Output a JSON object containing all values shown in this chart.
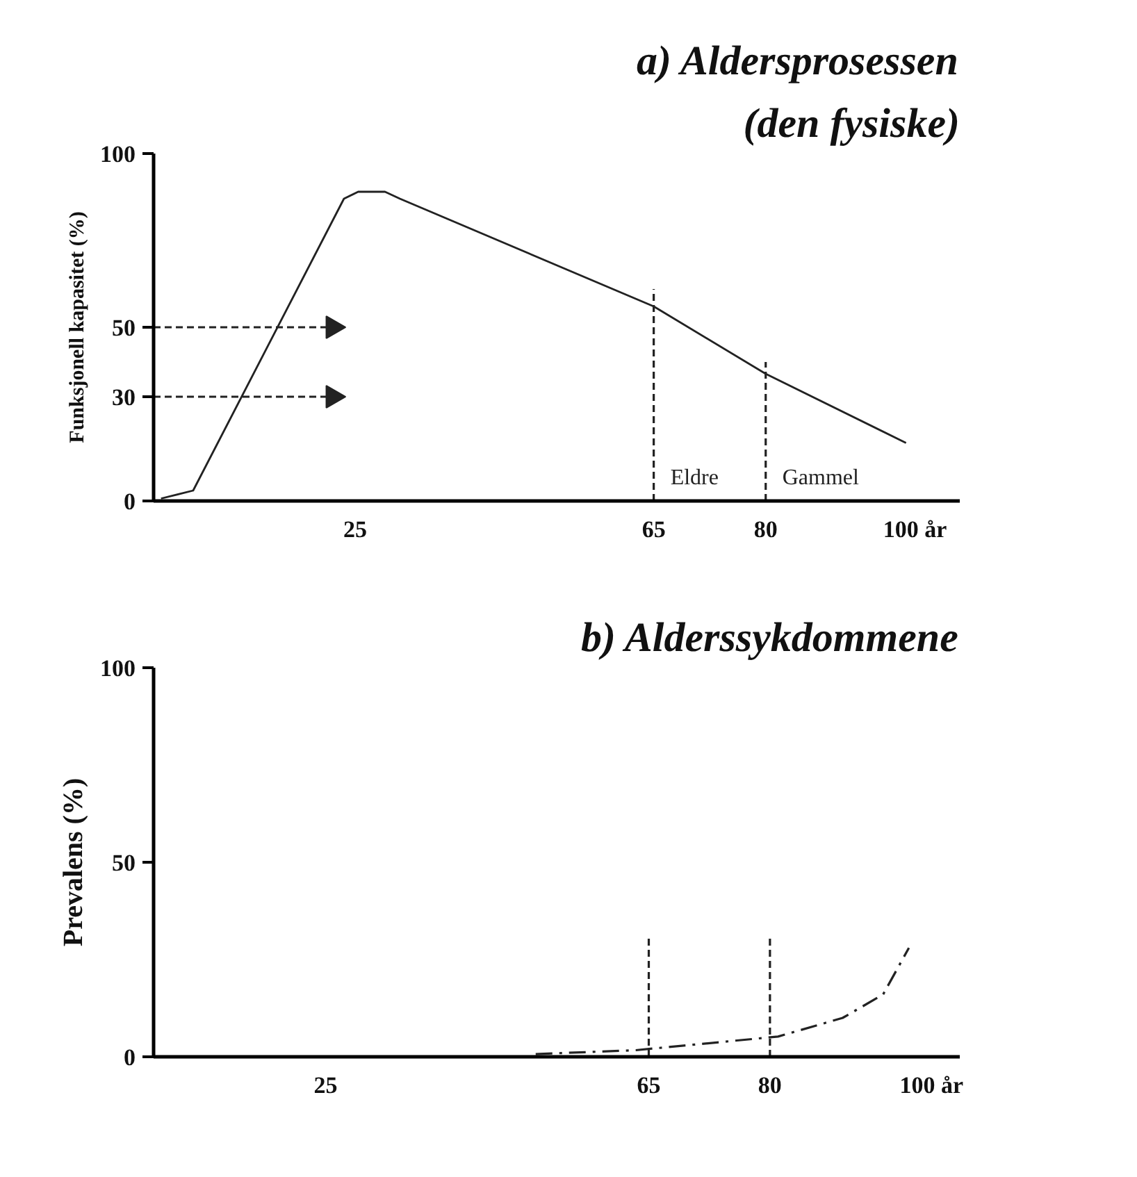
{
  "chart_data": [
    {
      "type": "line",
      "title": "a) Aldersprosessen",
      "subtitle": "(den fysiske)",
      "ylabel": "Funksjonell kapasitet (%)",
      "xlim": [
        -2,
        106
      ],
      "ylim": [
        0,
        100
      ],
      "xticks": [
        25,
        65,
        80,
        {
          "value": 100,
          "label": "100 år"
        }
      ],
      "yticks": [
        0,
        30,
        50,
        100
      ],
      "grid": false,
      "series": [
        {
          "color": "#222222",
          "line_style": "solid",
          "x": [
            -1,
            3.3,
            23.5,
            25.4,
            29,
            31,
            65,
            80,
            98.8
          ],
          "values": [
            0.7,
            3,
            87,
            89,
            89,
            87,
            56,
            36.6,
            16.7
          ]
        },
        {
          "color": "#222222",
          "line_style": "dashed",
          "marker": "triangle",
          "x": [
            -2,
            22
          ],
          "values": [
            50,
            50
          ]
        },
        {
          "color": "#222222",
          "line_style": "dashed",
          "marker": "triangle",
          "x": [
            -2,
            22
          ],
          "values": [
            30,
            30
          ]
        },
        {
          "color": "#222222",
          "line_style": "dashed",
          "x": [
            65,
            65
          ],
          "values": [
            0,
            61
          ]
        },
        {
          "color": "#222222",
          "line_style": "dashed",
          "x": [
            80,
            80
          ],
          "values": [
            0,
            40
          ]
        }
      ],
      "annotations": [
        "Eldre",
        "Gammel"
      ]
    },
    {
      "type": "line",
      "title": "b) Alderssykdommene",
      "ylabel": "Prevalens (%)",
      "xlim": [
        3.7,
        103.5
      ],
      "ylim": [
        0,
        100
      ],
      "xticks": [
        25,
        65,
        80,
        {
          "value": 100,
          "label": "100 år"
        }
      ],
      "yticks": [
        0,
        50,
        100
      ],
      "grid": false,
      "series": [
        {
          "color": "#222222",
          "line_style": "dashdot",
          "x": [
            51,
            63.4,
            81,
            89,
            94,
            97.2
          ],
          "values": [
            0.7,
            1.7,
            5.2,
            10,
            16,
            28
          ]
        },
        {
          "color": "#222222",
          "line_style": "dashed",
          "x": [
            65,
            65
          ],
          "values": [
            0,
            31
          ]
        },
        {
          "color": "#222222",
          "line_style": "dashed",
          "x": [
            80,
            80
          ],
          "values": [
            0,
            31
          ]
        }
      ]
    }
  ]
}
